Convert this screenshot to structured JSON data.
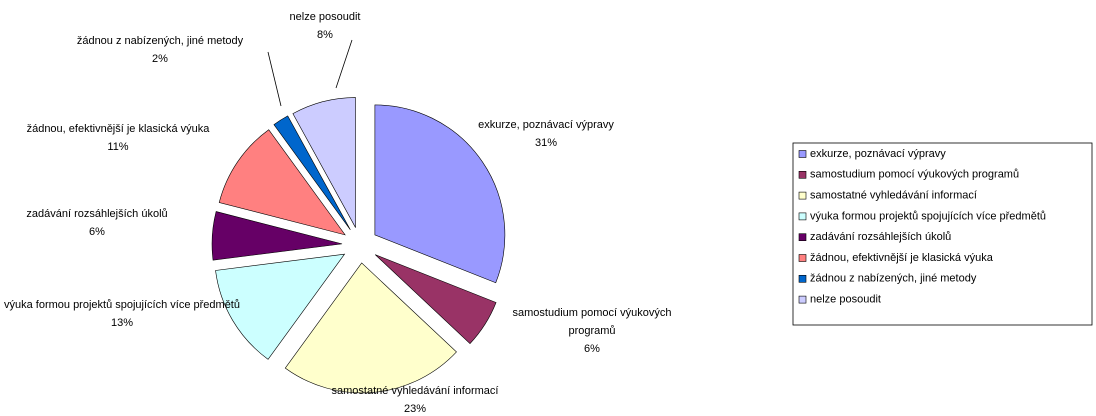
{
  "chart_data": {
    "type": "pie",
    "categories": [
      "exkurze, poznávací výpravy",
      "samostudium pomocí výukových programů",
      "samostatné vyhledávání informací",
      "výuka formou projektů spojujících více předmětů",
      "zadávání rozsáhlejších úkolů",
      "žádnou, efektivnější je klasická výuka",
      "žádnou z nabízených, jiné metody",
      "nelze posoudit"
    ],
    "values": [
      31,
      6,
      23,
      13,
      6,
      11,
      2,
      8
    ],
    "value_labels": [
      "31%",
      "6%",
      "23%",
      "13%",
      "6%",
      "11%",
      "2%",
      "8%"
    ],
    "colors": [
      "#9999ff",
      "#993366",
      "#ffffcc",
      "#ccffff",
      "#660066",
      "#ff8080",
      "#0066cc",
      "#ccccff"
    ],
    "legend": "right"
  }
}
